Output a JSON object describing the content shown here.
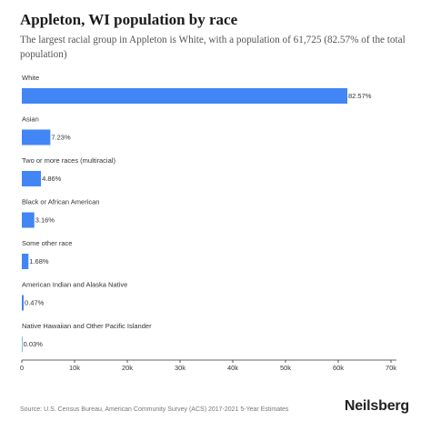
{
  "header": {
    "title": "Appleton, WI population by race",
    "subtitle": "The largest racial group in Appleton is White, with a population of 61,725 (82.57% of the total population)"
  },
  "footer": {
    "source": "Source: U.S. Census Bureau, American Community Survey (ACS) 2017-2021 5-Year Estimates",
    "brand": "Neilsberg"
  },
  "chart_data": {
    "type": "bar",
    "orientation": "horizontal",
    "categories": [
      "White",
      "Asian",
      "Two or more races (multiracial)",
      "Black or African American",
      "Some other race",
      "American Indian and Alaska Native",
      "Native Hawaiian and Other Pacific Islander"
    ],
    "values": [
      61725,
      5405,
      3633,
      2362,
      1256,
      351,
      22
    ],
    "data_labels": [
      "82.57%",
      "7.23%",
      "4.86%",
      "3.16%",
      "1.68%",
      "0.47%",
      "0.03%"
    ],
    "xlim": [
      0,
      70000
    ],
    "x_ticks": [
      0,
      10000,
      20000,
      30000,
      40000,
      50000,
      60000,
      70000
    ],
    "x_tick_labels": [
      "0",
      "10k",
      "20k",
      "30k",
      "40k",
      "50k",
      "60k",
      "70k"
    ],
    "bar_color": "#4285f4",
    "grid": false,
    "legend": "none"
  }
}
